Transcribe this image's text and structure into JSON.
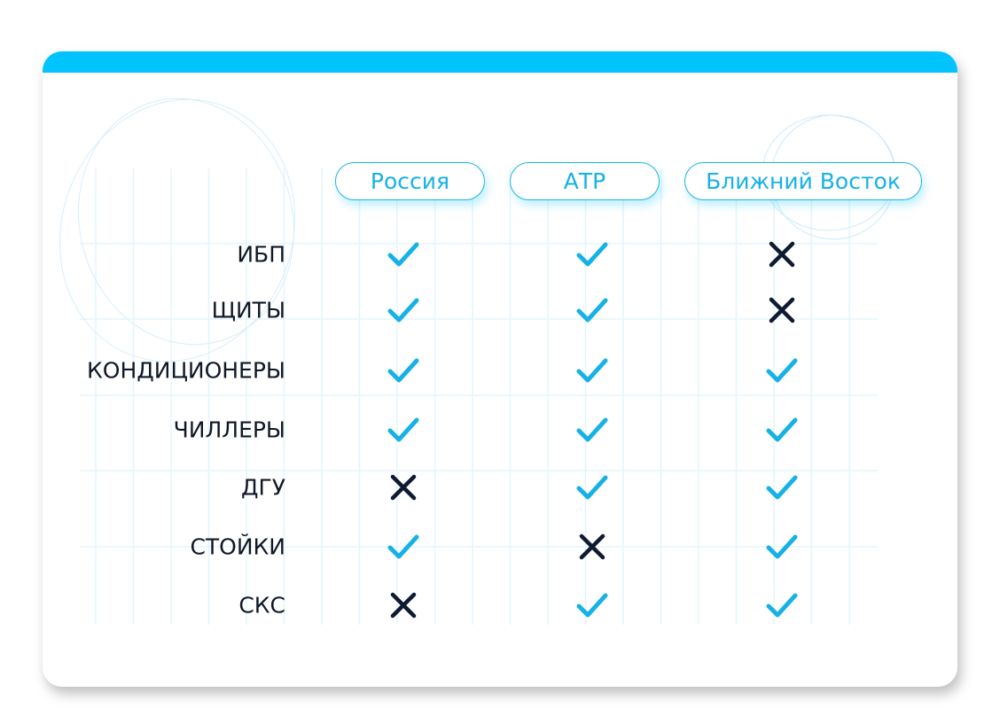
{
  "columns": [
    "Россия",
    "АТР",
    "Ближний Восток"
  ],
  "rows": [
    {
      "label": "ИБП",
      "values": [
        true,
        true,
        false
      ]
    },
    {
      "label": "ЩИТЫ",
      "values": [
        true,
        true,
        false
      ]
    },
    {
      "label": "КОНДИЦИОНЕРЫ",
      "values": [
        true,
        true,
        true
      ]
    },
    {
      "label": "ЧИЛЛЕРЫ",
      "values": [
        true,
        true,
        true
      ]
    },
    {
      "label": "ДГУ",
      "values": [
        false,
        true,
        true
      ]
    },
    {
      "label": "СТОЙКИ",
      "values": [
        true,
        false,
        true
      ]
    },
    {
      "label": "СКС",
      "values": [
        false,
        true,
        true
      ]
    }
  ],
  "colors": {
    "accent": "#00c3ff",
    "check": "#16b1e6",
    "cross": "#0e1a33"
  },
  "icons": {
    "yes": "check-icon",
    "no": "cross-icon"
  }
}
